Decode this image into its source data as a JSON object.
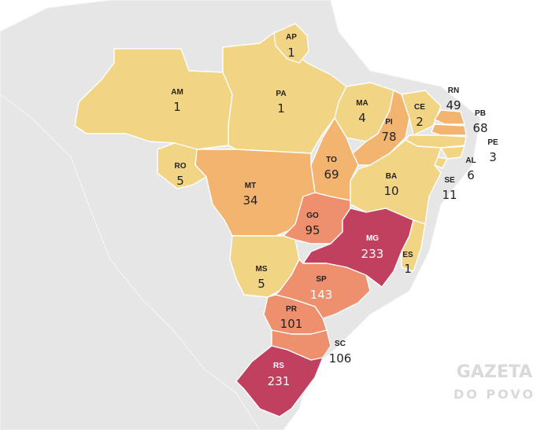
{
  "map": {
    "colors": {
      "low": "#f2d485",
      "mid": "#f2b46e",
      "high": "#ee8f6e",
      "top": "#c2405f",
      "land": "#e6e6e6"
    },
    "states": [
      {
        "abbr": "AP",
        "value": "1",
        "color": "#f2d485"
      },
      {
        "abbr": "AM",
        "value": "1",
        "color": "#f2d485"
      },
      {
        "abbr": "PA",
        "value": "1",
        "color": "#f2d485"
      },
      {
        "abbr": "MA",
        "value": "4",
        "color": "#f2d485"
      },
      {
        "abbr": "CE",
        "value": "2",
        "color": "#f2d485"
      },
      {
        "abbr": "RN",
        "value": "49",
        "color": "#f2b46e"
      },
      {
        "abbr": "PB",
        "value": "68",
        "color": "#f2b46e"
      },
      {
        "abbr": "PE",
        "value": "3",
        "color": "#f2d485"
      },
      {
        "abbr": "AL",
        "value": "6",
        "color": "#f2d485"
      },
      {
        "abbr": "SE",
        "value": "11",
        "color": "#f2d485"
      },
      {
        "abbr": "PI",
        "value": "78",
        "color": "#f2b46e"
      },
      {
        "abbr": "BA",
        "value": "10",
        "color": "#f2d485"
      },
      {
        "abbr": "RO",
        "value": "5",
        "color": "#f2d485"
      },
      {
        "abbr": "MT",
        "value": "34",
        "color": "#f2b46e"
      },
      {
        "abbr": "TO",
        "value": "69",
        "color": "#f2b46e"
      },
      {
        "abbr": "GO",
        "value": "95",
        "color": "#ee8f6e"
      },
      {
        "abbr": "MG",
        "value": "233",
        "color": "#c2405f"
      },
      {
        "abbr": "ES",
        "value": "1",
        "color": "#f2d485"
      },
      {
        "abbr": "MS",
        "value": "5",
        "color": "#f2d485"
      },
      {
        "abbr": "SP",
        "value": "143",
        "color": "#ee8f6e"
      },
      {
        "abbr": "PR",
        "value": "101",
        "color": "#ee8f6e"
      },
      {
        "abbr": "SC",
        "value": "106",
        "color": "#ee8f6e"
      },
      {
        "abbr": "RS",
        "value": "231",
        "color": "#c2405f"
      }
    ]
  },
  "watermark": {
    "line1": "GAZETA",
    "line2": "DO POVO"
  }
}
